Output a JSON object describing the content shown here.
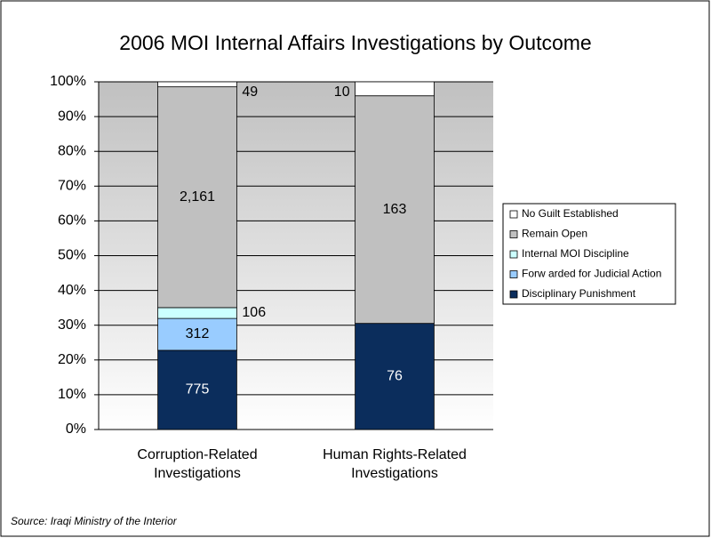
{
  "chart_data": {
    "type": "bar",
    "stacking": "percent",
    "title": "2006 MOI Internal Affairs Investigations by Outcome",
    "source": "Source: Iraqi Ministry of the Interior",
    "categories": [
      "Corruption-Related Investigations",
      "Human Rights-Related Investigations"
    ],
    "series": [
      {
        "name": "Disciplinary Punishment",
        "color": "#0b2d5c",
        "values": [
          775,
          76
        ],
        "value_labels": [
          "775",
          "76"
        ]
      },
      {
        "name": "Forw arded for Judicial Action",
        "color": "#99ccff",
        "values": [
          312,
          0
        ],
        "value_labels": [
          "312",
          null
        ]
      },
      {
        "name": "Internal MOI Discipline",
        "color": "#ccffff",
        "values": [
          106,
          0
        ],
        "value_labels": [
          "106",
          null
        ]
      },
      {
        "name": "Remain Open",
        "color": "#c0c0c0",
        "values": [
          2161,
          163
        ],
        "value_labels": [
          "2,161",
          "163"
        ]
      },
      {
        "name": "No Guilt Established",
        "color": "#ffffff",
        "values": [
          49,
          10
        ],
        "value_labels": [
          "49",
          "10"
        ]
      }
    ],
    "ylim": [
      0,
      100
    ],
    "yticks": [
      {
        "value": 0,
        "label": "0%"
      },
      {
        "value": 10,
        "label": "10%"
      },
      {
        "value": 20,
        "label": "20%"
      },
      {
        "value": 30,
        "label": "30%"
      },
      {
        "value": 40,
        "label": "40%"
      },
      {
        "value": 50,
        "label": "50%"
      },
      {
        "value": 60,
        "label": "60%"
      },
      {
        "value": 70,
        "label": "70%"
      },
      {
        "value": 80,
        "label": "80%"
      },
      {
        "value": 90,
        "label": "90%"
      },
      {
        "value": 100,
        "label": "100%"
      }
    ],
    "grid": true,
    "legend": "right"
  }
}
